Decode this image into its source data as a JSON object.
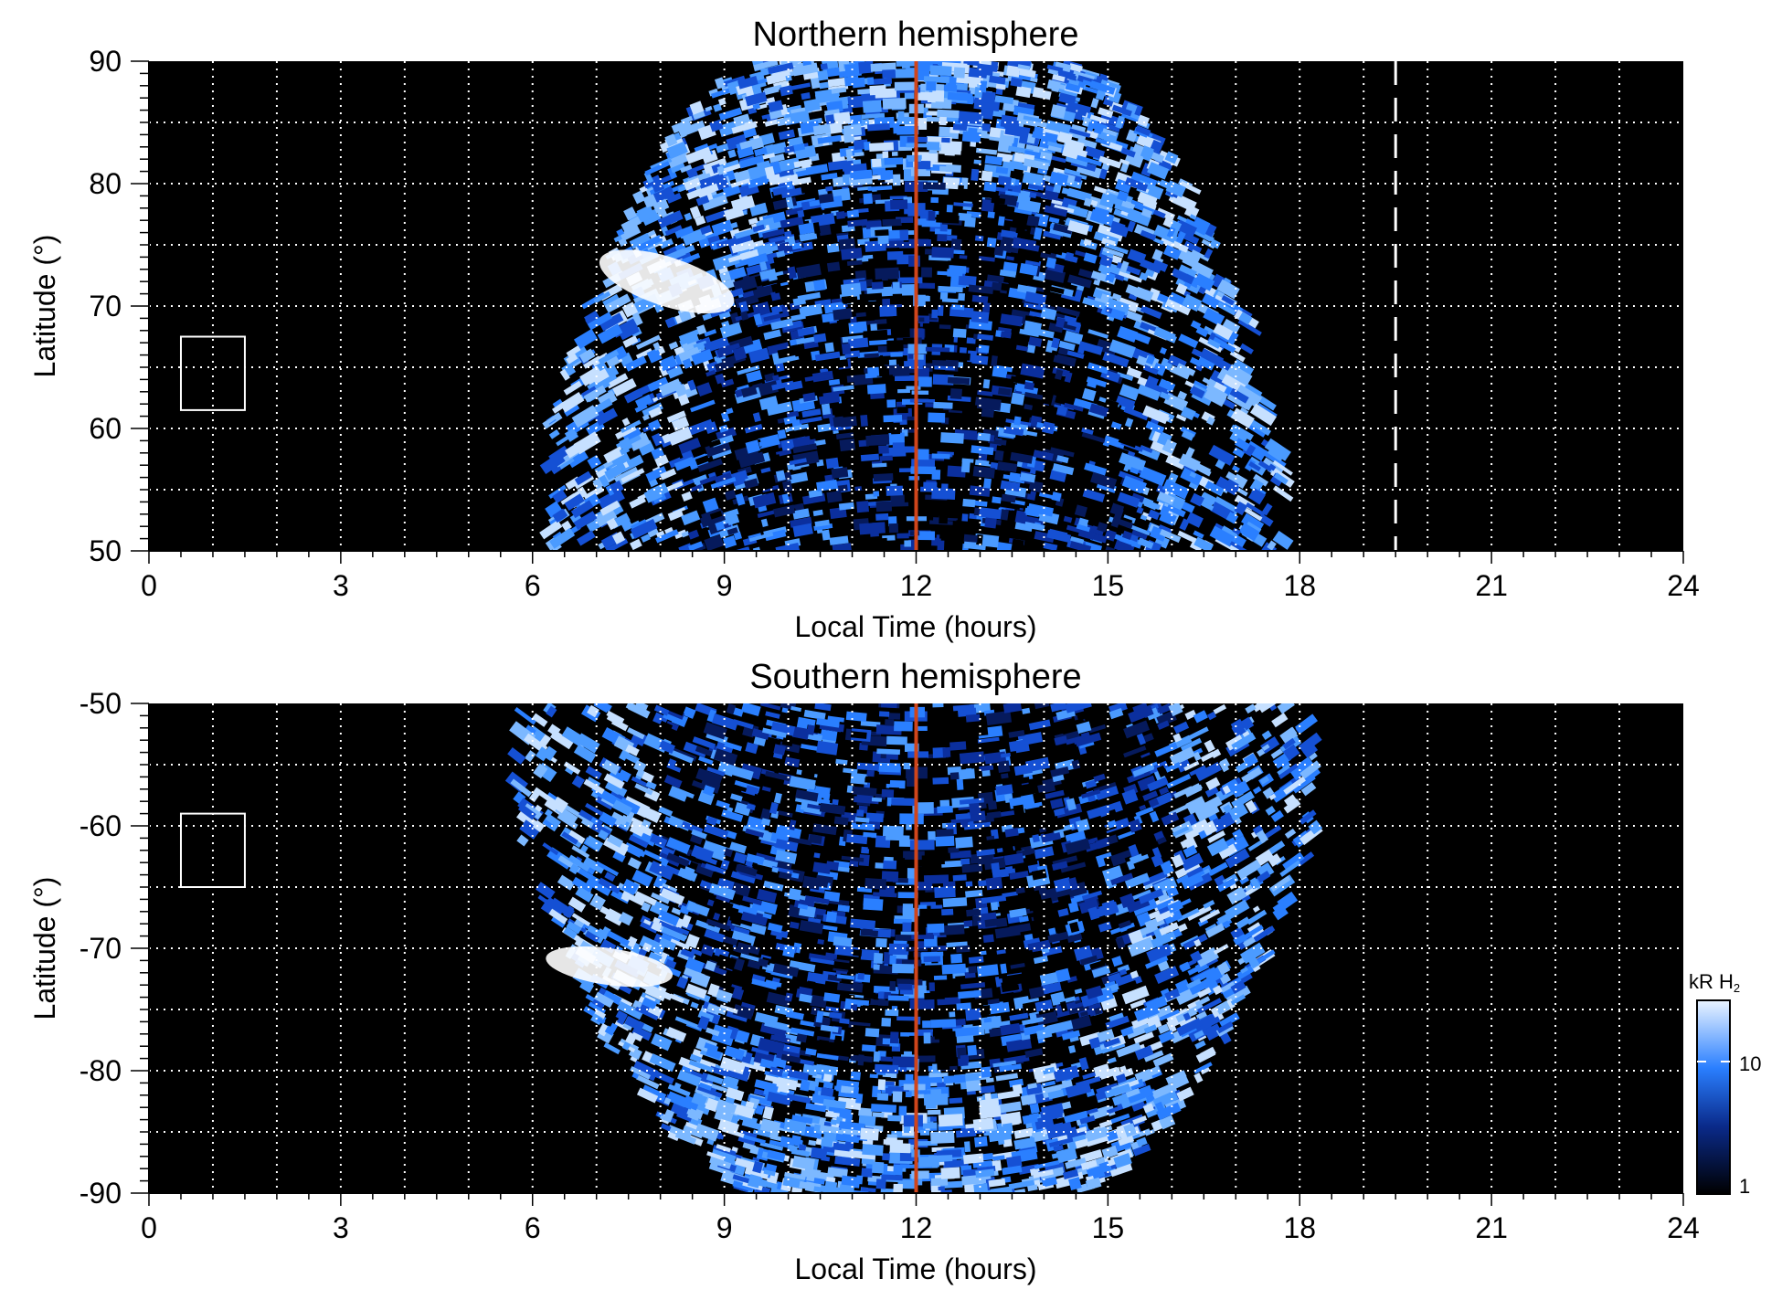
{
  "chart_data": [
    {
      "type": "heatmap",
      "title": "Northern hemisphere",
      "xlabel": "Local Time (hours)",
      "ylabel": "Latitude (°)",
      "xlim": [
        0,
        24
      ],
      "ylim": [
        50,
        90
      ],
      "xticks": [
        "0",
        "3",
        "6",
        "9",
        "12",
        "15",
        "18",
        "21",
        "24"
      ],
      "yticks": [
        "50",
        "60",
        "70",
        "80",
        "90"
      ],
      "grid": true,
      "emission_extent_local_time": [
        6.5,
        18.0
      ],
      "bright_spot": {
        "local_time": [
          7.0,
          9.2
        ],
        "latitude": [
          70,
          74
        ]
      },
      "noon_line_local_time": 12,
      "dashed_line_local_time": 19.5,
      "reference_box": {
        "local_time": [
          0.5,
          1.5
        ],
        "latitude": [
          61.5,
          67.5
        ]
      }
    },
    {
      "type": "heatmap",
      "title": "Southern hemisphere",
      "xlabel": "Local Time (hours)",
      "ylabel": "Latitude (°)",
      "xlim": [
        0,
        24
      ],
      "ylim": [
        -90,
        -50
      ],
      "xticks": [
        "0",
        "3",
        "6",
        "9",
        "12",
        "15",
        "18",
        "21",
        "24"
      ],
      "yticks": [
        "-90",
        "-80",
        "-70",
        "-60",
        "-50"
      ],
      "grid": true,
      "emission_extent_local_time": [
        6.0,
        18.5
      ],
      "bright_spot": {
        "local_time": [
          6.2,
          8.2
        ],
        "latitude": [
          -73,
          -70
        ]
      },
      "noon_line_local_time": 12,
      "reference_box": {
        "local_time": [
          0.5,
          1.5
        ],
        "latitude": [
          -65,
          -59
        ]
      }
    }
  ],
  "colorbar": {
    "label_main": "kR H",
    "label_sub": "2",
    "ticks": [
      "1",
      "10"
    ],
    "scale": "log"
  },
  "colors": {
    "background": "#000000",
    "emission": "#2a7fff",
    "noon_line": "#d0451b",
    "grid": "#ffffff"
  }
}
